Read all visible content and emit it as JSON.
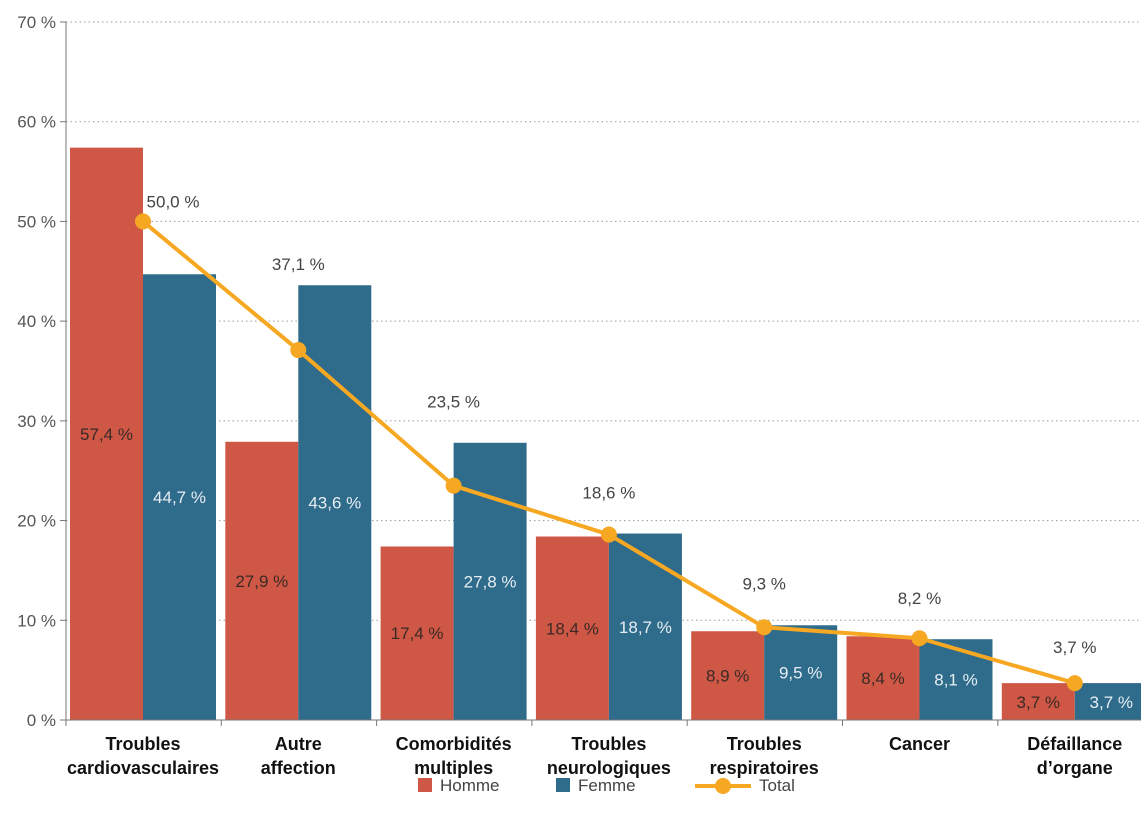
{
  "chart_data": {
    "type": "bar",
    "categories": [
      [
        "Troubles",
        "cardiovasculaires"
      ],
      [
        "Autre",
        "affection"
      ],
      [
        "Comorbidités",
        "multiples"
      ],
      [
        "Troubles",
        "neurologiques"
      ],
      [
        "Troubles",
        "respiratoires"
      ],
      [
        "Cancer"
      ],
      [
        "Défaillance",
        "d’organe"
      ]
    ],
    "series": [
      {
        "name": "Homme",
        "kind": "bar",
        "color": "#cf5745",
        "values": [
          57.4,
          27.9,
          17.4,
          18.4,
          8.9,
          8.4,
          3.7
        ],
        "labels": [
          "57,4 %",
          "27,9 %",
          "17,4 %",
          "18,4 %",
          "8,9 %",
          "8,4 %",
          "3,7 %"
        ]
      },
      {
        "name": "Femme",
        "kind": "bar",
        "color": "#2f6b8a",
        "values": [
          44.7,
          43.6,
          27.8,
          18.7,
          9.5,
          8.1,
          3.7
        ],
        "labels": [
          "44,7 %",
          "43,6 %",
          "27,8 %",
          "18,7 %",
          "9,5 %",
          "8,1 %",
          "3,7 %"
        ]
      },
      {
        "name": "Total",
        "kind": "line",
        "color": "#f7a823",
        "values": [
          50.0,
          37.1,
          23.5,
          18.6,
          9.3,
          8.2,
          3.7
        ],
        "labels": [
          "50,0 %",
          "37,1 %",
          "23,5 %",
          "18,6 %",
          "9,3 %",
          "8,2 %",
          "3,7 %"
        ]
      }
    ],
    "ylim": [
      0,
      70
    ],
    "yticks": [
      0,
      10,
      20,
      30,
      40,
      50,
      60,
      70
    ],
    "ytick_labels": [
      "0 %",
      "10 %",
      "20 %",
      "30 %",
      "40 %",
      "50 %",
      "60 %",
      "70 %"
    ],
    "grid": "horizontal-dotted",
    "legend_position": "bottom-center"
  }
}
